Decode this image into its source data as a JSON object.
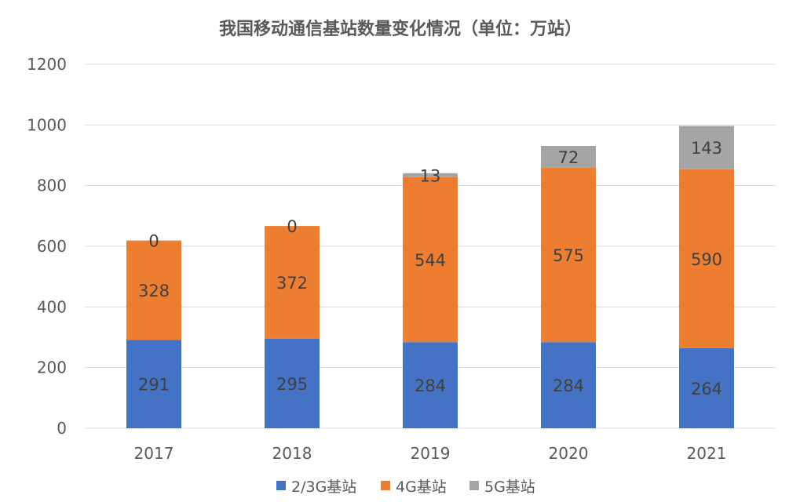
{
  "chart_data": {
    "type": "bar",
    "stacked": true,
    "title": "我国移动通信基站数量变化情况（单位：万站）",
    "categories": [
      "2017",
      "2018",
      "2019",
      "2020",
      "2021"
    ],
    "series": [
      {
        "name": "2/3G基站",
        "color": "#4472c4",
        "values": [
          291,
          295,
          284,
          284,
          264
        ]
      },
      {
        "name": "4G基站",
        "color": "#ed7d31",
        "values": [
          328,
          372,
          544,
          575,
          590
        ]
      },
      {
        "name": "5G基站",
        "color": "#a5a5a5",
        "values": [
          0,
          0,
          13,
          72,
          143
        ]
      }
    ],
    "ylim": [
      0,
      1200
    ],
    "yticks": [
      0,
      200,
      400,
      600,
      800,
      1000,
      1200
    ],
    "grid": true,
    "legend_position": "bottom",
    "data_labels": true
  }
}
